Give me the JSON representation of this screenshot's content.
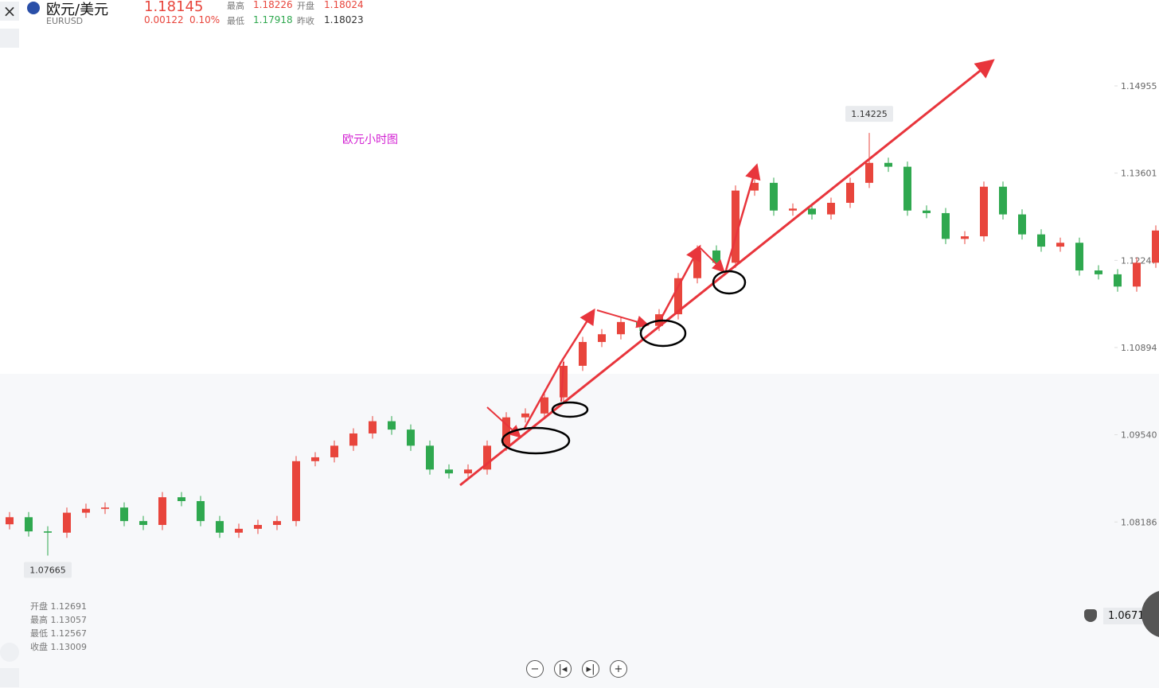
{
  "header": {
    "symbol": "欧元/美元",
    "code": "EURUSD",
    "price": "1.18145",
    "change": "0.00122",
    "change_pct": "0.10%",
    "high_label": "最高",
    "high": "1.18226",
    "open_label": "开盘",
    "open": "1.18024",
    "low_label": "最低",
    "low": "1.17918",
    "prev_close_label": "昨收",
    "prev_close": "1.18023"
  },
  "info": {
    "open": "开盘 1.12691",
    "high": "最高 1.13057",
    "low": "最低 1.12567",
    "close": "收盘 1.13009"
  },
  "alert_price": "1.0671",
  "chart_data": {
    "type": "candlestick",
    "annotation": "欧元小时图",
    "max_label": {
      "value": 1.14225,
      "label": "1.14225"
    },
    "min_label": {
      "value": 1.07665,
      "label": "1.07665"
    },
    "up_color": "#e8453c",
    "down_color": "#2fa84f",
    "ylim": [
      1.05609,
      1.16288
    ],
    "yticks": [
      1.14955,
      1.13601,
      1.12247,
      1.10894,
      {
        "value": 1.0954,
        "label": "1.09540"
      },
      1.08186
    ],
    "open": [
      1.0815,
      1.0826,
      1.0804,
      1.0802,
      1.0833,
      1.0839,
      1.0841,
      1.082,
      1.0814,
      1.0857,
      1.0851,
      1.082,
      1.0802,
      1.0808,
      1.0814,
      1.082,
      1.0913,
      1.0919,
      1.0937,
      1.0956,
      1.0975,
      1.0962,
      1.0937,
      1.09,
      1.0894,
      1.09,
      1.0937,
      1.0981,
      1.0987,
      1.1012,
      1.1061,
      1.1098,
      1.111,
      1.1129,
      1.1123,
      1.1141,
      1.1197,
      1.124,
      1.1221,
      1.1333,
      1.1345,
      1.1302,
      1.1305,
      1.1296,
      1.1314,
      1.1345,
      1.1376,
      1.137,
      1.1302,
      1.1298,
      1.1258,
      1.1262,
      1.1339,
      1.1296,
      1.1265,
      1.1246,
      1.1252,
      1.1209,
      1.1203,
      1.1184,
      1.1221
    ],
    "high": [
      1.0834,
      1.0834,
      1.0812,
      1.0841,
      1.0847,
      1.0849,
      1.0849,
      1.0828,
      1.0865,
      1.0865,
      1.0859,
      1.0828,
      1.0816,
      1.0822,
      1.0828,
      1.0921,
      1.0927,
      1.0945,
      1.0964,
      1.0983,
      1.0983,
      1.097,
      1.0945,
      1.0908,
      1.0908,
      1.0945,
      1.0989,
      1.0995,
      1.102,
      1.1069,
      1.1106,
      1.1118,
      1.1137,
      1.1137,
      1.1149,
      1.1205,
      1.1248,
      1.1248,
      1.1341,
      1.1353,
      1.1353,
      1.1313,
      1.1313,
      1.1322,
      1.1353,
      1.14225,
      1.1384,
      1.1378,
      1.131,
      1.1306,
      1.127,
      1.1347,
      1.1347,
      1.1304,
      1.1273,
      1.126,
      1.126,
      1.1217,
      1.1211,
      1.1229,
      1.1279
    ],
    "low": [
      1.0807,
      1.0796,
      1.07665,
      1.0794,
      1.0825,
      1.0831,
      1.0812,
      1.0806,
      1.0806,
      1.0843,
      1.0812,
      1.0794,
      1.0794,
      1.08,
      1.0806,
      1.0812,
      1.0905,
      1.0911,
      1.0929,
      1.0948,
      1.0954,
      1.0929,
      1.0892,
      1.0886,
      1.0886,
      1.0892,
      1.0929,
      1.0973,
      1.0979,
      1.1004,
      1.1053,
      1.109,
      1.1102,
      1.1115,
      1.1115,
      1.1133,
      1.1189,
      1.1213,
      1.1213,
      1.1325,
      1.1294,
      1.1294,
      1.1288,
      1.1288,
      1.1306,
      1.1337,
      1.1362,
      1.1294,
      1.129,
      1.125,
      1.125,
      1.1254,
      1.1288,
      1.1257,
      1.1238,
      1.1238,
      1.1201,
      1.1195,
      1.1176,
      1.1176,
      1.1213
    ],
    "close": [
      1.0826,
      1.0804,
      1.0802,
      1.0833,
      1.0839,
      1.0841,
      1.082,
      1.0814,
      1.0857,
      1.0851,
      1.082,
      1.0802,
      1.0808,
      1.0814,
      1.082,
      1.0913,
      1.0919,
      1.0937,
      1.0956,
      1.0975,
      1.0962,
      1.0937,
      1.09,
      1.0894,
      1.09,
      1.0937,
      1.0981,
      1.0987,
      1.1012,
      1.1061,
      1.1098,
      1.111,
      1.1129,
      1.1123,
      1.1141,
      1.1197,
      1.124,
      1.1221,
      1.1333,
      1.1345,
      1.1302,
      1.1305,
      1.1296,
      1.1314,
      1.1345,
      1.1376,
      1.137,
      1.1302,
      1.1298,
      1.1258,
      1.1262,
      1.1339,
      1.1296,
      1.1265,
      1.1246,
      1.1252,
      1.1209,
      1.1203,
      1.1184,
      1.1221,
      1.1271
    ]
  }
}
